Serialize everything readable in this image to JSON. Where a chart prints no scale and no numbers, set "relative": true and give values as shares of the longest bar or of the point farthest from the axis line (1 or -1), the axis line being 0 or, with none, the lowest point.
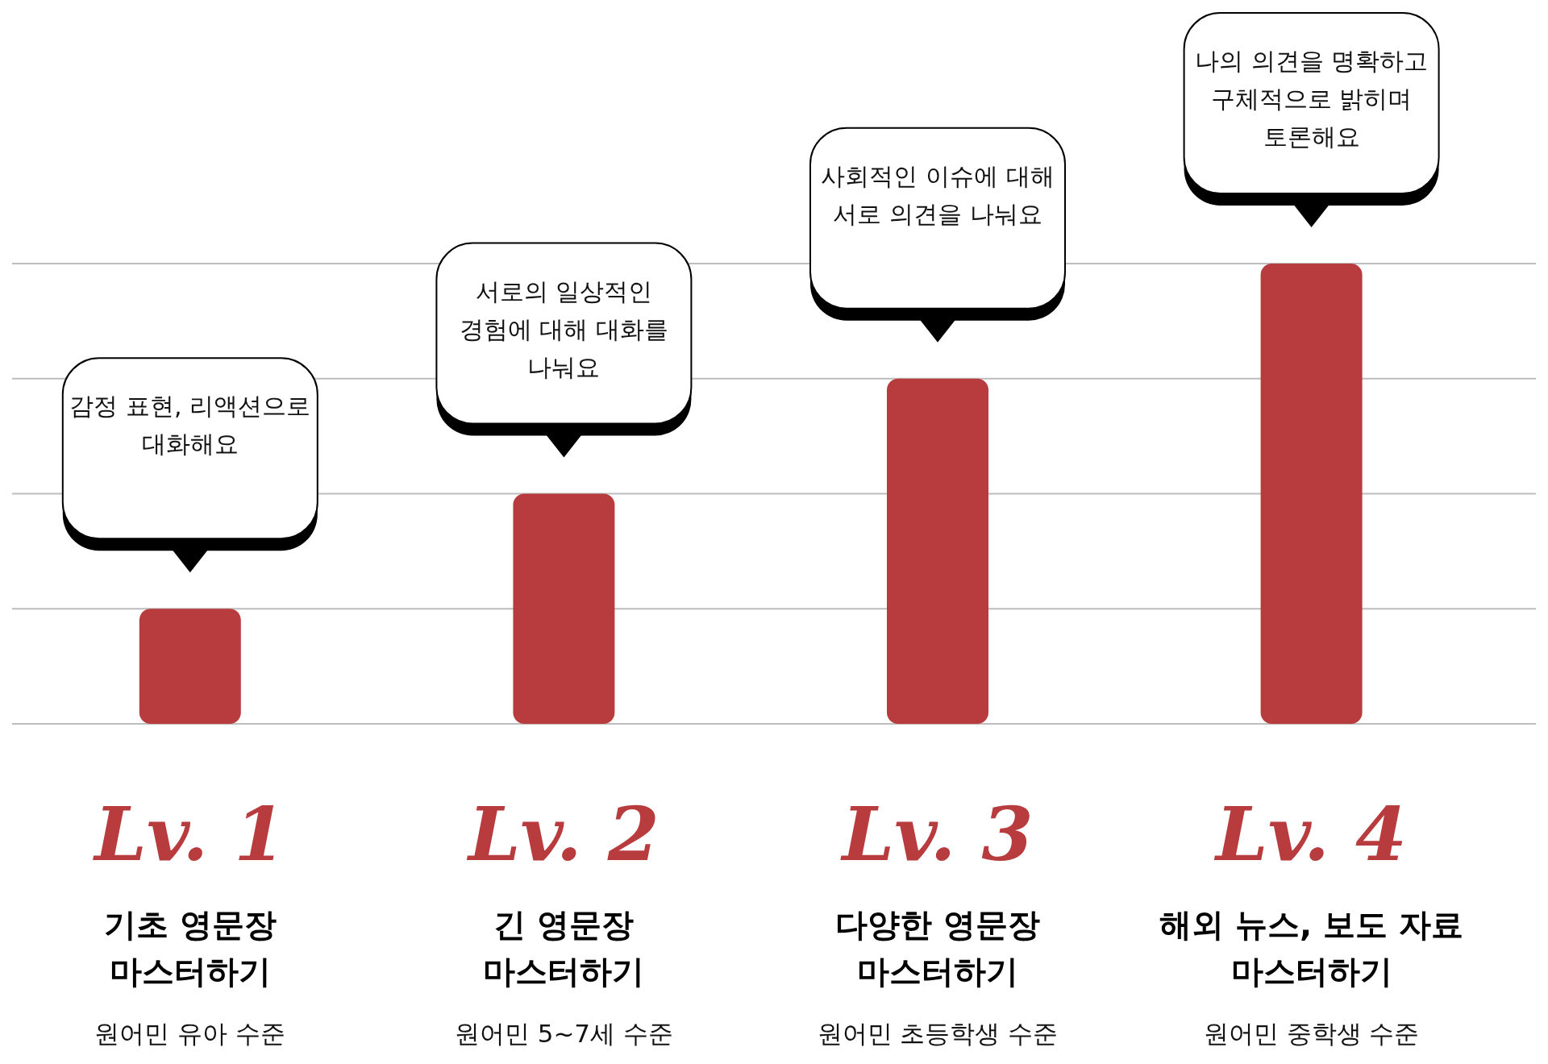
{
  "chart_data": {
    "type": "bar",
    "relative": true,
    "grid": true,
    "color": "#b83b3d",
    "categories": [
      "Lv. 1",
      "Lv. 2",
      "Lv. 3",
      "Lv. 4"
    ],
    "values": [
      0.25,
      0.5,
      0.75,
      1
    ],
    "annotations": [
      "감정 표현, 리액션으로 대화해요",
      "서로의 일상적인 경험에 대해 대화를 나눠요",
      "사회적인 이슈에 대해 서로 의견을 나눠요",
      "나의 의견을 명확하고 구체적으로 밝히며 토론해요",
      "기초 영문장 마스터하기",
      "원어민 유아 수준",
      "긴 영문장 마스터하기",
      "원어민 5~7세 수준",
      "다양한 영문장 마스터하기",
      "원어민 초등학생 수준",
      "해외 뉴스, 보도 자료 마스터하기",
      "원어민 중학생 수준"
    ]
  }
}
